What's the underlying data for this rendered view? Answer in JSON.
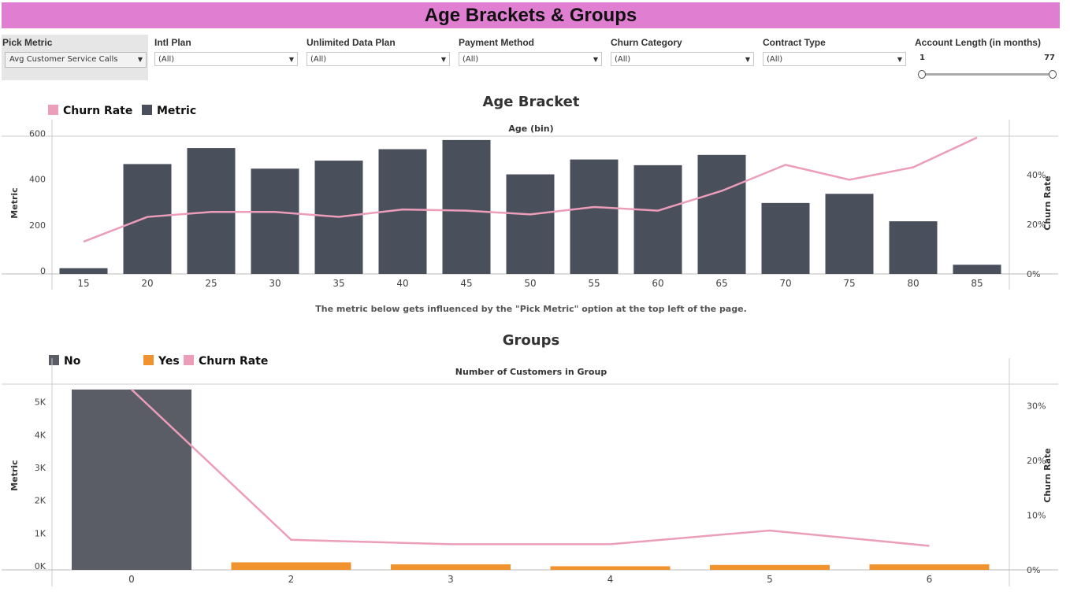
{
  "header": {
    "title": "Age Brackets & Groups"
  },
  "filters": {
    "pick_metric": {
      "label": "Pick Metric",
      "value": "Avg Customer Service Calls"
    },
    "intl_plan": {
      "label": "Intl Plan",
      "value": "(All)"
    },
    "unlimited_data": {
      "label": "Unlimited Data Plan",
      "value": "(All)"
    },
    "payment_method": {
      "label": "Payment Method",
      "value": "(All)"
    },
    "churn_category": {
      "label": "Churn Category",
      "value": "(All)"
    },
    "contract_type": {
      "label": "Contract Type",
      "value": "(All)"
    },
    "account_length": {
      "label": "Account Length (in months)",
      "min": "1",
      "max": "77"
    }
  },
  "note": "The metric below gets influenced by the \"Pick Metric\" option at the top left of the page.",
  "colors": {
    "bar": "#4a4f5c",
    "bar_no": "#5a5d66",
    "bar_yes": "#f0922e",
    "line": "#eb9db9",
    "title_bg": "#e07fd2"
  },
  "chart_data": [
    {
      "type": "bar",
      "title": "Age Bracket",
      "header": "Age (bin)",
      "legend": [
        {
          "name": "Churn Rate",
          "color": "#eb9db9"
        },
        {
          "name": "Metric",
          "color": "#4a4f5c"
        }
      ],
      "categories": [
        "15",
        "20",
        "25",
        "30",
        "35",
        "40",
        "45",
        "50",
        "55",
        "60",
        "65",
        "70",
        "75",
        "80",
        "85"
      ],
      "series": [
        {
          "name": "Metric",
          "axis": "left",
          "values": [
            25,
            480,
            550,
            460,
            495,
            545,
            585,
            435,
            500,
            475,
            520,
            310,
            350,
            230,
            40
          ]
        },
        {
          "name": "Churn Rate",
          "axis": "right",
          "type": "line",
          "values": [
            0.13,
            0.23,
            0.25,
            0.25,
            0.23,
            0.26,
            0.255,
            0.24,
            0.27,
            0.255,
            0.335,
            0.44,
            0.38,
            0.43,
            0.55
          ]
        }
      ],
      "ylabel": "Metric",
      "ylabel_right": "Churn Rate",
      "yticks": [
        "0",
        "200",
        "400",
        "600"
      ],
      "yticks_right": [
        "0%",
        "20%",
        "40%"
      ]
    },
    {
      "type": "bar",
      "title": "Groups",
      "header": "Number of Customers in Group",
      "legend": [
        {
          "name": "No",
          "color": "#5a5d66"
        },
        {
          "name": "Yes",
          "color": "#f0922e"
        },
        {
          "name": "Churn Rate",
          "color": "#eb9db9"
        }
      ],
      "categories": [
        "0",
        "2",
        "3",
        "4",
        "5",
        "6"
      ],
      "series": [
        {
          "name": "Metric",
          "axis": "left",
          "values": [
            5500,
            230,
            170,
            110,
            150,
            170
          ],
          "group": [
            "No",
            "Yes",
            "Yes",
            "Yes",
            "Yes",
            "Yes"
          ]
        },
        {
          "name": "Churn Rate",
          "axis": "right",
          "type": "line",
          "values": [
            0.33,
            0.055,
            0.047,
            0.047,
            0.072,
            0.044
          ]
        }
      ],
      "ylabel": "Metric",
      "ylabel_right": "Churn Rate",
      "yticks": [
        "0K",
        "1K",
        "2K",
        "3K",
        "4K",
        "5K"
      ],
      "yticks_right": [
        "0%",
        "10%",
        "20%",
        "30%"
      ]
    }
  ]
}
